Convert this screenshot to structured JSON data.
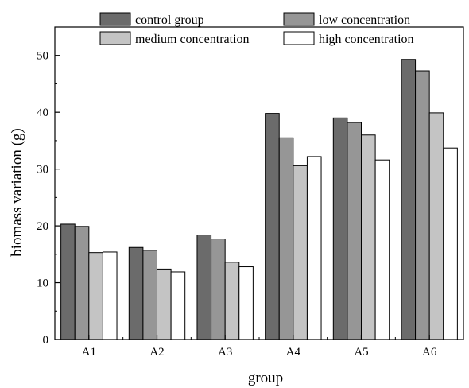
{
  "chart_data": {
    "type": "bar",
    "title": "",
    "xlabel": "group",
    "ylabel": "biomass variation (g)",
    "categories": [
      "A1",
      "A2",
      "A3",
      "A4",
      "A5",
      "A6"
    ],
    "ylim": [
      0,
      55
    ],
    "yticks": [
      0,
      10,
      20,
      30,
      40,
      50
    ],
    "grid": false,
    "legend_position": "top",
    "series": [
      {
        "name": "control group",
        "color": "#6b6b6b",
        "values": [
          20.3,
          16.2,
          18.4,
          39.8,
          39.0,
          49.3
        ]
      },
      {
        "name": "low concentration",
        "color": "#969696",
        "values": [
          19.9,
          15.7,
          17.7,
          35.5,
          38.2,
          47.3
        ]
      },
      {
        "name": "medium concentration",
        "color": "#c4c4c4",
        "values": [
          15.3,
          12.4,
          13.6,
          30.6,
          36.0,
          39.9
        ]
      },
      {
        "name": "high concentration",
        "color": "#ffffff",
        "values": [
          15.4,
          11.9,
          12.8,
          32.2,
          31.6,
          33.7
        ]
      }
    ]
  }
}
